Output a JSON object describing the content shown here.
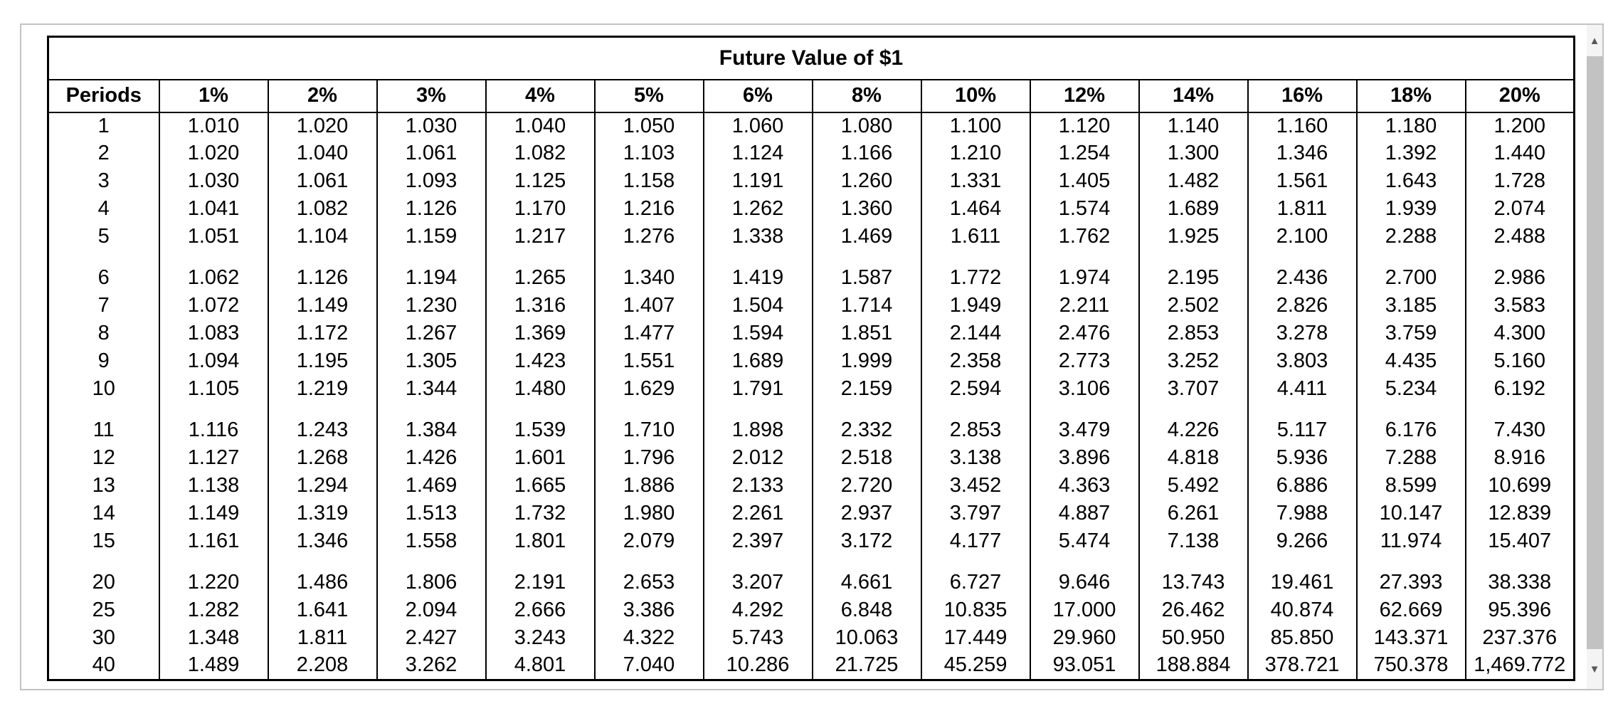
{
  "table": {
    "title": "Future Value of $1",
    "period_header": "Periods",
    "rate_headers": [
      "1%",
      "2%",
      "3%",
      "4%",
      "5%",
      "6%",
      "8%",
      "10%",
      "12%",
      "14%",
      "16%",
      "18%",
      "20%"
    ],
    "row_groups": [
      {
        "rows": [
          {
            "period": "1",
            "values": [
              "1.010",
              "1.020",
              "1.030",
              "1.040",
              "1.050",
              "1.060",
              "1.080",
              "1.100",
              "1.120",
              "1.140",
              "1.160",
              "1.180",
              "1.200"
            ]
          },
          {
            "period": "2",
            "values": [
              "1.020",
              "1.040",
              "1.061",
              "1.082",
              "1.103",
              "1.124",
              "1.166",
              "1.210",
              "1.254",
              "1.300",
              "1.346",
              "1.392",
              "1.440"
            ]
          },
          {
            "period": "3",
            "values": [
              "1.030",
              "1.061",
              "1.093",
              "1.125",
              "1.158",
              "1.191",
              "1.260",
              "1.331",
              "1.405",
              "1.482",
              "1.561",
              "1.643",
              "1.728"
            ]
          },
          {
            "period": "4",
            "values": [
              "1.041",
              "1.082",
              "1.126",
              "1.170",
              "1.216",
              "1.262",
              "1.360",
              "1.464",
              "1.574",
              "1.689",
              "1.811",
              "1.939",
              "2.074"
            ]
          },
          {
            "period": "5",
            "values": [
              "1.051",
              "1.104",
              "1.159",
              "1.217",
              "1.276",
              "1.338",
              "1.469",
              "1.611",
              "1.762",
              "1.925",
              "2.100",
              "2.288",
              "2.488"
            ]
          }
        ]
      },
      {
        "rows": [
          {
            "period": "6",
            "values": [
              "1.062",
              "1.126",
              "1.194",
              "1.265",
              "1.340",
              "1.419",
              "1.587",
              "1.772",
              "1.974",
              "2.195",
              "2.436",
              "2.700",
              "2.986"
            ]
          },
          {
            "period": "7",
            "values": [
              "1.072",
              "1.149",
              "1.230",
              "1.316",
              "1.407",
              "1.504",
              "1.714",
              "1.949",
              "2.211",
              "2.502",
              "2.826",
              "3.185",
              "3.583"
            ]
          },
          {
            "period": "8",
            "values": [
              "1.083",
              "1.172",
              "1.267",
              "1.369",
              "1.477",
              "1.594",
              "1.851",
              "2.144",
              "2.476",
              "2.853",
              "3.278",
              "3.759",
              "4.300"
            ]
          },
          {
            "period": "9",
            "values": [
              "1.094",
              "1.195",
              "1.305",
              "1.423",
              "1.551",
              "1.689",
              "1.999",
              "2.358",
              "2.773",
              "3.252",
              "3.803",
              "4.435",
              "5.160"
            ]
          },
          {
            "period": "10",
            "values": [
              "1.105",
              "1.219",
              "1.344",
              "1.480",
              "1.629",
              "1.791",
              "2.159",
              "2.594",
              "3.106",
              "3.707",
              "4.411",
              "5.234",
              "6.192"
            ]
          }
        ]
      },
      {
        "rows": [
          {
            "period": "11",
            "values": [
              "1.116",
              "1.243",
              "1.384",
              "1.539",
              "1.710",
              "1.898",
              "2.332",
              "2.853",
              "3.479",
              "4.226",
              "5.117",
              "6.176",
              "7.430"
            ]
          },
          {
            "period": "12",
            "values": [
              "1.127",
              "1.268",
              "1.426",
              "1.601",
              "1.796",
              "2.012",
              "2.518",
              "3.138",
              "3.896",
              "4.818",
              "5.936",
              "7.288",
              "8.916"
            ]
          },
          {
            "period": "13",
            "values": [
              "1.138",
              "1.294",
              "1.469",
              "1.665",
              "1.886",
              "2.133",
              "2.720",
              "3.452",
              "4.363",
              "5.492",
              "6.886",
              "8.599",
              "10.699"
            ]
          },
          {
            "period": "14",
            "values": [
              "1.149",
              "1.319",
              "1.513",
              "1.732",
              "1.980",
              "2.261",
              "2.937",
              "3.797",
              "4.887",
              "6.261",
              "7.988",
              "10.147",
              "12.839"
            ]
          },
          {
            "period": "15",
            "values": [
              "1.161",
              "1.346",
              "1.558",
              "1.801",
              "2.079",
              "2.397",
              "3.172",
              "4.177",
              "5.474",
              "7.138",
              "9.266",
              "11.974",
              "15.407"
            ]
          }
        ]
      },
      {
        "rows": [
          {
            "period": "20",
            "values": [
              "1.220",
              "1.486",
              "1.806",
              "2.191",
              "2.653",
              "3.207",
              "4.661",
              "6.727",
              "9.646",
              "13.743",
              "19.461",
              "27.393",
              "38.338"
            ]
          },
          {
            "period": "25",
            "values": [
              "1.282",
              "1.641",
              "2.094",
              "2.666",
              "3.386",
              "4.292",
              "6.848",
              "10.835",
              "17.000",
              "26.462",
              "40.874",
              "62.669",
              "95.396"
            ]
          },
          {
            "period": "30",
            "values": [
              "1.348",
              "1.811",
              "2.427",
              "3.243",
              "4.322",
              "5.743",
              "10.063",
              "17.449",
              "29.960",
              "50.950",
              "85.850",
              "143.371",
              "237.376"
            ]
          },
          {
            "period": "40",
            "values": [
              "1.489",
              "2.208",
              "3.262",
              "4.801",
              "7.040",
              "10.286",
              "21.725",
              "45.259",
              "93.051",
              "188.884",
              "378.721",
              "750.378",
              "1,469.772"
            ]
          }
        ]
      }
    ]
  },
  "scrollbar": {
    "up_icon": "▲",
    "down_icon": "▼"
  },
  "colors": {
    "frame_border": "#c3c3c3",
    "table_border": "#000000",
    "scrollbar_track": "#f1f1f1",
    "scrollbar_thumb": "#c2c2c2",
    "scrollbar_arrow": "#5a5a5a"
  }
}
